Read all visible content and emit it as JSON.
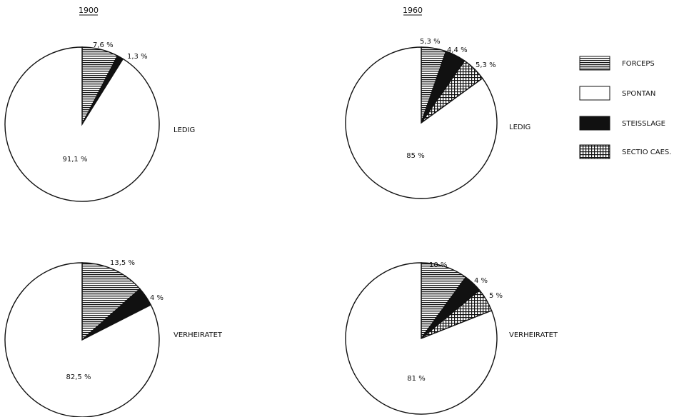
{
  "columns": [
    "1900",
    "1960"
  ],
  "rows": [
    "LEDIG",
    "VERHEIRATET"
  ],
  "legend": [
    {
      "label": "FORCEPS",
      "pattern": "forceps-hatch"
    },
    {
      "label": "SPONTAN",
      "pattern": "blank"
    },
    {
      "label": "STEISSLAGE",
      "pattern": "solid-black"
    },
    {
      "label": "SECTIO CAES.",
      "pattern": "crosshatch"
    }
  ],
  "chart_data": [
    {
      "type": "pie",
      "column": "1900",
      "row": "LEDIG",
      "start": "12 o'clock",
      "direction": "clockwise",
      "slices": [
        {
          "category": "FORCEPS",
          "value": 7.6,
          "label": "7,6 %"
        },
        {
          "category": "STEISSLAGE",
          "value": 1.3,
          "label": "1,3 %"
        },
        {
          "category": "SPONTAN",
          "value": 91.1,
          "label": "91,1 %"
        }
      ]
    },
    {
      "type": "pie",
      "column": "1960",
      "row": "LEDIG",
      "start": "12 o'clock",
      "direction": "clockwise",
      "slices": [
        {
          "category": "FORCEPS",
          "value": 5.3,
          "label": "5,3 %"
        },
        {
          "category": "STEISSLAGE",
          "value": 4.4,
          "label": "4,4 %"
        },
        {
          "category": "SECTIO CAES.",
          "value": 5.3,
          "label": "5,3 %"
        },
        {
          "category": "SPONTAN",
          "value": 85,
          "label": "85 %"
        }
      ]
    },
    {
      "type": "pie",
      "column": "1900",
      "row": "VERHEIRATET",
      "start": "12 o'clock",
      "direction": "clockwise",
      "slices": [
        {
          "category": "FORCEPS",
          "value": 13.5,
          "label": "13,5 %"
        },
        {
          "category": "STEISSLAGE",
          "value": 4,
          "label": "4 %"
        },
        {
          "category": "SPONTAN",
          "value": 82.5,
          "label": "82,5 %"
        }
      ]
    },
    {
      "type": "pie",
      "column": "1960",
      "row": "VERHEIRATET",
      "start": "12 o'clock",
      "direction": "clockwise",
      "slices": [
        {
          "category": "FORCEPS",
          "value": 10,
          "label": "10 %"
        },
        {
          "category": "STEISSLAGE",
          "value": 4,
          "label": "4 %"
        },
        {
          "category": "SECTIO CAES.",
          "value": 5,
          "label": "5 %"
        },
        {
          "category": "SPONTAN",
          "value": 81,
          "label": "81 %"
        }
      ]
    }
  ]
}
